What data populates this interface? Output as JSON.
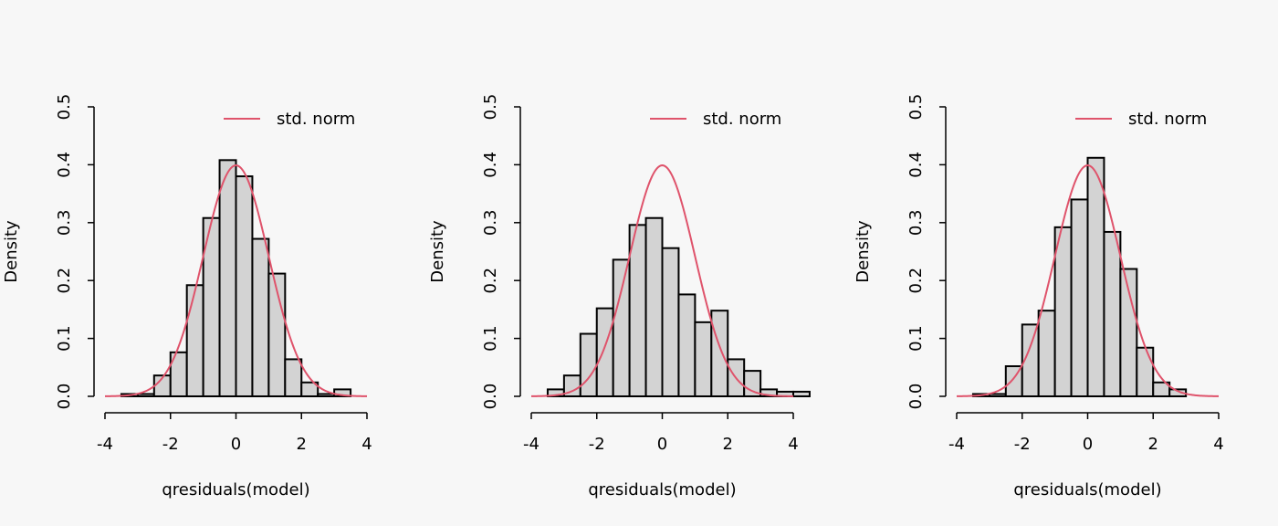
{
  "colors": {
    "background": "#f7f7f7",
    "bar_fill": "#d3d3d3",
    "bar_stroke": "#000000",
    "curve": "#df536b",
    "axis": "#000000"
  },
  "chart_data": [
    {
      "type": "bar",
      "subtype": "histogram",
      "xlabel": "qresiduals(model)",
      "ylabel": "Density",
      "xlim": [
        -4,
        4
      ],
      "ylim": [
        0,
        0.5
      ],
      "x_ticks": [
        "-4",
        "-2",
        "0",
        "2",
        "4"
      ],
      "y_ticks": [
        "0.0",
        "0.1",
        "0.2",
        "0.3",
        "0.4",
        "0.5"
      ],
      "bin_width": 0.5,
      "bin_edges_start": -3.5,
      "values": [
        0.004,
        0.004,
        0.036,
        0.076,
        0.192,
        0.308,
        0.408,
        0.38,
        0.272,
        0.212,
        0.064,
        0.024,
        0.004,
        0.012
      ],
      "legend": {
        "position": "top-right",
        "label": "std. norm",
        "line_color": "#df536b"
      },
      "overlay": {
        "type": "line",
        "name": "std. norm",
        "distribution": "standard normal density"
      },
      "grid": false
    },
    {
      "type": "bar",
      "subtype": "histogram",
      "xlabel": "qresiduals(model)",
      "ylabel": "Density",
      "xlim": [
        -4,
        4
      ],
      "ylim": [
        0,
        0.5
      ],
      "x_ticks": [
        "-4",
        "-2",
        "0",
        "2",
        "4"
      ],
      "y_ticks": [
        "0.0",
        "0.1",
        "0.2",
        "0.3",
        "0.4",
        "0.5"
      ],
      "bin_width": 0.5,
      "bin_edges_start": -3.5,
      "values": [
        0.012,
        0.036,
        0.108,
        0.152,
        0.236,
        0.296,
        0.308,
        0.256,
        0.176,
        0.128,
        0.148,
        0.064,
        0.044,
        0.012,
        0.008,
        0.008
      ],
      "legend": {
        "position": "top-right",
        "label": "std. norm",
        "line_color": "#df536b"
      },
      "overlay": {
        "type": "line",
        "name": "std. norm",
        "distribution": "standard normal density"
      },
      "grid": false
    },
    {
      "type": "bar",
      "subtype": "histogram",
      "xlabel": "qresiduals(model)",
      "ylabel": "Density",
      "xlim": [
        -4,
        4
      ],
      "ylim": [
        0,
        0.5
      ],
      "x_ticks": [
        "-4",
        "-2",
        "0",
        "2",
        "4"
      ],
      "y_ticks": [
        "0.0",
        "0.1",
        "0.2",
        "0.3",
        "0.4",
        "0.5"
      ],
      "bin_width": 0.5,
      "bin_edges_start": -3.5,
      "values": [
        0.004,
        0.004,
        0.052,
        0.124,
        0.148,
        0.292,
        0.34,
        0.412,
        0.284,
        0.22,
        0.084,
        0.024,
        0.012
      ],
      "legend": {
        "position": "top-right",
        "label": "std. norm",
        "line_color": "#df536b"
      },
      "overlay": {
        "type": "line",
        "name": "std. norm",
        "distribution": "standard normal density"
      },
      "grid": false
    }
  ]
}
